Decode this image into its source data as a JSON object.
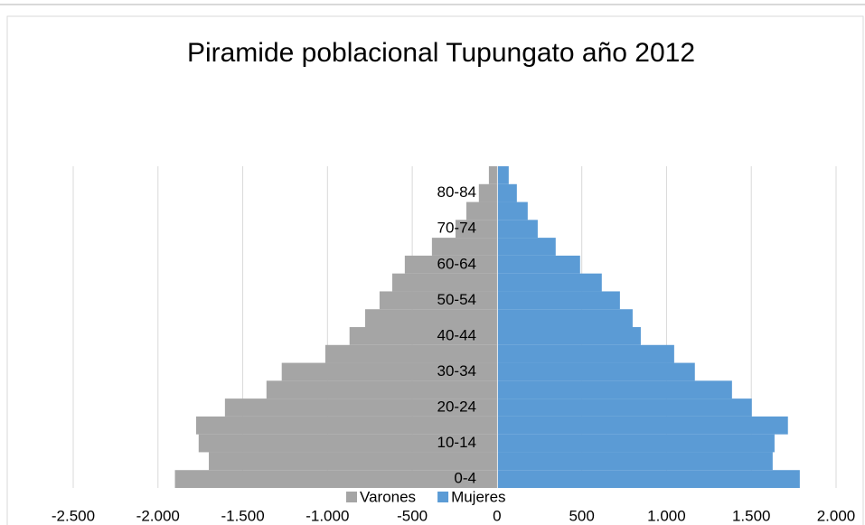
{
  "chart_data": {
    "type": "pyramid",
    "title": "Piramide poblacional Tupungato año 2012",
    "categories": [
      "0-4",
      null,
      "10-14",
      null,
      "20-24",
      null,
      "30-34",
      null,
      "40-44",
      null,
      "50-54",
      null,
      "60-64",
      null,
      "70-74",
      null,
      "80-84",
      null
    ],
    "series": [
      {
        "name": "Varones",
        "color": "#a5a5a5",
        "values": [
          -1900,
          -1700,
          -1760,
          -1775,
          -1605,
          -1360,
          -1270,
          -1013,
          -870,
          -778,
          -693,
          -618,
          -544,
          -384,
          -245,
          -181,
          -107,
          -48
        ]
      },
      {
        "name": "Mujeres",
        "color": "#5b9bd5",
        "values": [
          1786,
          1626,
          1637,
          1716,
          1503,
          1386,
          1167,
          1045,
          848,
          800,
          725,
          618,
          490,
          346,
          240,
          181,
          117,
          69
        ]
      }
    ],
    "xlim": [
      -2500,
      2000
    ],
    "xticks": [
      {
        "value": -2500,
        "label": "-2.500"
      },
      {
        "value": -2000,
        "label": "-2.000"
      },
      {
        "value": -1500,
        "label": "-1.500"
      },
      {
        "value": -1000,
        "label": "-1.000"
      },
      -500,
      0,
      500,
      {
        "value": 1000,
        "label": "1.000"
      },
      {
        "value": 1500,
        "label": "1.500"
      },
      {
        "value": 2000,
        "label": "2.000"
      }
    ],
    "grid": true,
    "legend": "bottom"
  }
}
